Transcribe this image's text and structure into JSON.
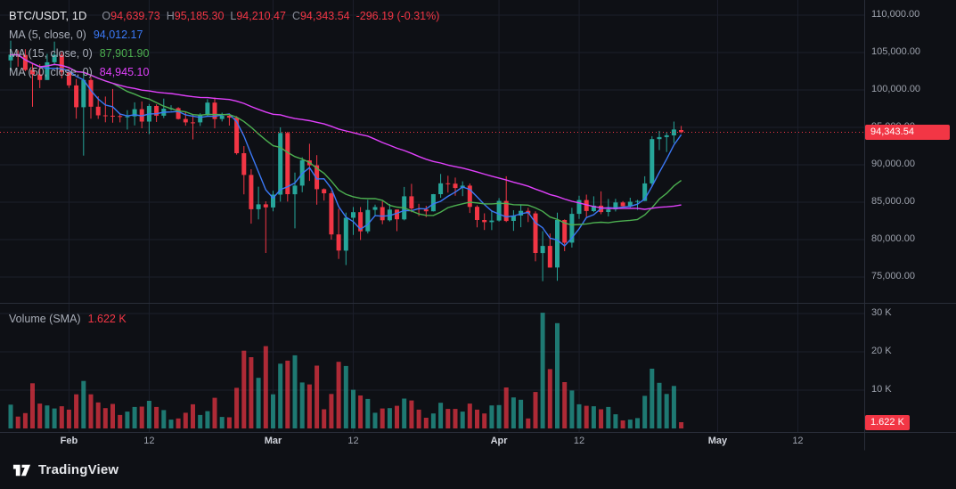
{
  "colors": {
    "bg": "#0e1015",
    "up": "#26a69a",
    "down": "#f23645",
    "ma5": "#3b79f7",
    "ma15": "#4caf50",
    "ma50": "#e040fb",
    "grid": "#1c1f2b",
    "border": "#2a2e39",
    "text": "#d3d6de",
    "text_dim": "#9da2ad"
  },
  "legend": {
    "symbol": "BTC/USDT, 1D",
    "ohlc": {
      "open_label": "O",
      "open": "94,639.73",
      "high_label": "H",
      "high": "95,185.30",
      "low_label": "L",
      "low": "94,210.47",
      "close_label": "C",
      "close": "94,343.54",
      "change": "-296.19",
      "change_pct": "(-0.31%)"
    },
    "ma_rows": [
      {
        "label": "MA (5, close, 0)",
        "value": "94,012.17"
      },
      {
        "label": "MA (15, close, 0)",
        "value": "87,901.90"
      },
      {
        "label": "MA (50, close, 0)",
        "value": "84,945.10"
      }
    ]
  },
  "volume_legend": {
    "label": "Volume (SMA)",
    "value": "1.622 K"
  },
  "price_tag": "94,343.54",
  "volume_tag": "1.622 K",
  "price_axis": {
    "ticks": [
      {
        "label": "110,000.00",
        "value": 110000
      },
      {
        "label": "105,000.00",
        "value": 105000
      },
      {
        "label": "100,000.00",
        "value": 100000
      },
      {
        "label": "95,000.00",
        "value": 95000
      },
      {
        "label": "90,000.00",
        "value": 90000
      },
      {
        "label": "85,000.00",
        "value": 85000
      },
      {
        "label": "80,000.00",
        "value": 80000
      },
      {
        "label": "75,000.00",
        "value": 75000
      }
    ]
  },
  "volume_axis": {
    "ticks": [
      {
        "label": "30 K",
        "value_k": 30
      },
      {
        "label": "20 K",
        "value_k": 20
      },
      {
        "label": "10 K",
        "value_k": 10
      }
    ]
  },
  "time_axis": {
    "ticks": [
      {
        "label": "Feb",
        "index": 8,
        "major": true
      },
      {
        "label": "12",
        "index": 19,
        "major": false
      },
      {
        "label": "Mar",
        "index": 36,
        "major": true
      },
      {
        "label": "12",
        "index": 47,
        "major": false
      },
      {
        "label": "Apr",
        "index": 67,
        "major": true
      },
      {
        "label": "12",
        "index": 78,
        "major": false
      },
      {
        "label": "May",
        "index": 97,
        "major": true
      },
      {
        "label": "12",
        "index": 108,
        "major": false
      }
    ]
  },
  "footer": {
    "logo_text": "TradingView"
  },
  "chart_data": {
    "type": "candlestick",
    "symbol": "BTC/USDT",
    "interval": "1D",
    "start_date": "2025-01-24",
    "price_axis_range": [
      75000,
      110000
    ],
    "volume_axis_range_k": [
      0,
      30
    ],
    "last_price": 94343.54,
    "last_volume_k": 1.622,
    "last_ohlc": {
      "open": 94639.73,
      "high": 95185.3,
      "low": 94210.47,
      "close": 94343.54,
      "change": -296.19,
      "change_pct": -0.31
    },
    "ma": [
      {
        "period": 5,
        "color_var": "ma5",
        "value": 94012.17
      },
      {
        "period": 15,
        "color_var": "ma15",
        "value": 87901.9
      },
      {
        "period": 50,
        "color_var": "ma50",
        "value": 84945.1
      }
    ],
    "candles_format": [
      "open",
      "high",
      "low",
      "close",
      "volume_k"
    ],
    "candles": [
      [
        103960,
        106600,
        102600,
        104720,
        6.2
      ],
      [
        104720,
        105300,
        103120,
        104680,
        3.1
      ],
      [
        104680,
        105450,
        102500,
        102680,
        4.0
      ],
      [
        102680,
        103480,
        97750,
        102080,
        11.8
      ],
      [
        102080,
        103440,
        100250,
        101330,
        6.5
      ],
      [
        101330,
        104820,
        101330,
        103700,
        6.0
      ],
      [
        103700,
        106460,
        103300,
        104690,
        5.2
      ],
      [
        104690,
        105100,
        101540,
        102400,
        5.8
      ],
      [
        102400,
        102800,
        100280,
        100610,
        4.9
      ],
      [
        100610,
        101460,
        96150,
        97690,
        8.9
      ],
      [
        97690,
        102540,
        91230,
        101330,
        12.4
      ],
      [
        101330,
        101740,
        96150,
        97760,
        8.9
      ],
      [
        97760,
        99150,
        96130,
        96610,
        6.8
      ],
      [
        96610,
        99120,
        95680,
        96560,
        5.3
      ],
      [
        96560,
        100130,
        95620,
        96510,
        6.4
      ],
      [
        96510,
        96870,
        95670,
        96460,
        3.5
      ],
      [
        96460,
        97300,
        94710,
        96470,
        4.4
      ],
      [
        96470,
        98340,
        95260,
        97430,
        5.6
      ],
      [
        97430,
        98460,
        94880,
        95780,
        5.7
      ],
      [
        95780,
        98120,
        94090,
        97860,
        7.2
      ],
      [
        97860,
        98080,
        95710,
        96560,
        5.6
      ],
      [
        96560,
        98840,
        96250,
        97500,
        4.8
      ],
      [
        97500,
        97970,
        97230,
        97570,
        2.3
      ],
      [
        97570,
        97700,
        96050,
        96120,
        2.6
      ],
      [
        96120,
        97040,
        95230,
        95670,
        4.1
      ],
      [
        95670,
        96720,
        93390,
        95660,
        6.3
      ],
      [
        95660,
        96880,
        95190,
        96630,
        3.5
      ],
      [
        96630,
        98770,
        96430,
        98310,
        4.5
      ],
      [
        98310,
        98990,
        94870,
        96120,
        8.0
      ],
      [
        96120,
        96960,
        95790,
        96550,
        3.0
      ],
      [
        96550,
        96680,
        95240,
        96300,
        2.9
      ],
      [
        96300,
        96500,
        91360,
        91550,
        10.6
      ],
      [
        91550,
        92500,
        86050,
        88640,
        20.3
      ],
      [
        88640,
        89400,
        82130,
        84060,
        18.6
      ],
      [
        84060,
        87070,
        82700,
        84710,
        13.2
      ],
      [
        84710,
        85120,
        78210,
        84300,
        21.5
      ],
      [
        84300,
        86540,
        83790,
        86010,
        8.9
      ],
      [
        86010,
        95000,
        85070,
        94250,
        16.9
      ],
      [
        94250,
        94420,
        85080,
        86070,
        17.7
      ],
      [
        86070,
        88960,
        81500,
        87220,
        19.1
      ],
      [
        87220,
        91000,
        86330,
        90600,
        12.0
      ],
      [
        90600,
        92810,
        87840,
        89930,
        11.5
      ],
      [
        89930,
        91280,
        84670,
        86740,
        16.4
      ],
      [
        86740,
        86850,
        85220,
        86190,
        5.0
      ],
      [
        86190,
        86470,
        80000,
        80690,
        9.0
      ],
      [
        80690,
        84120,
        77420,
        78530,
        17.4
      ],
      [
        78530,
        83610,
        76600,
        82920,
        16.3
      ],
      [
        82920,
        84360,
        80630,
        83670,
        10.1
      ],
      [
        83670,
        84340,
        79940,
        81110,
        8.6
      ],
      [
        81110,
        85310,
        80820,
        83970,
        7.7
      ],
      [
        83970,
        84680,
        83210,
        84340,
        4.1
      ],
      [
        84340,
        85120,
        82060,
        82580,
        5.2
      ],
      [
        82580,
        84760,
        82430,
        84010,
        5.3
      ],
      [
        84010,
        84020,
        81130,
        82710,
        5.9
      ],
      [
        82710,
        87030,
        82570,
        85790,
        7.8
      ],
      [
        85790,
        87450,
        83650,
        84170,
        7.3
      ],
      [
        84170,
        84790,
        83140,
        84040,
        4.9
      ],
      [
        84040,
        84520,
        83000,
        83790,
        2.8
      ],
      [
        83790,
        86100,
        83760,
        86070,
        3.9
      ],
      [
        86070,
        88770,
        85600,
        87520,
        6.7
      ],
      [
        87520,
        88540,
        86280,
        87480,
        5.1
      ],
      [
        87480,
        88290,
        85860,
        86900,
        5.1
      ],
      [
        86900,
        87790,
        85810,
        87220,
        4.4
      ],
      [
        87220,
        87500,
        83560,
        84380,
        6.5
      ],
      [
        84380,
        84580,
        81640,
        82620,
        4.9
      ],
      [
        82620,
        83510,
        81290,
        82330,
        3.9
      ],
      [
        82330,
        83890,
        81270,
        82550,
        6.0
      ],
      [
        82550,
        85550,
        82410,
        85170,
        6.1
      ],
      [
        85170,
        88470,
        82350,
        82490,
        10.7
      ],
      [
        82490,
        83930,
        81170,
        83210,
        8.1
      ],
      [
        83210,
        84720,
        81650,
        83840,
        7.5
      ],
      [
        83840,
        84250,
        82350,
        83500,
        2.6
      ],
      [
        83500,
        83770,
        77100,
        78210,
        9.5
      ],
      [
        78210,
        81130,
        74440,
        79160,
        30.2
      ],
      [
        79160,
        80820,
        76250,
        76270,
        15.5
      ],
      [
        76270,
        83600,
        74500,
        82620,
        27.5
      ],
      [
        82620,
        82700,
        78450,
        79590,
        12.1
      ],
      [
        79590,
        84250,
        78940,
        83440,
        9.9
      ],
      [
        83440,
        85860,
        82770,
        85280,
        6.3
      ],
      [
        85280,
        86010,
        83030,
        83810,
        5.9
      ],
      [
        83810,
        85780,
        83670,
        84540,
        5.8
      ],
      [
        84540,
        86450,
        83390,
        83680,
        5.0
      ],
      [
        83680,
        85430,
        83100,
        84030,
        5.6
      ],
      [
        84030,
        85450,
        83760,
        84960,
        3.7
      ],
      [
        84960,
        85140,
        84300,
        84450,
        2.1
      ],
      [
        84450,
        85600,
        84290,
        85060,
        2.3
      ],
      [
        85060,
        85310,
        83980,
        85170,
        2.7
      ],
      [
        85170,
        88460,
        85140,
        87510,
        8.5
      ],
      [
        87510,
        93820,
        87070,
        93430,
        15.6
      ],
      [
        93430,
        94540,
        91960,
        93700,
        11.9
      ],
      [
        93700,
        94350,
        91700,
        93940,
        9.0
      ],
      [
        93940,
        95770,
        92900,
        94720,
        11.1
      ],
      [
        94639.73,
        95185.3,
        94210.47,
        94343.54,
        1.622
      ]
    ]
  }
}
